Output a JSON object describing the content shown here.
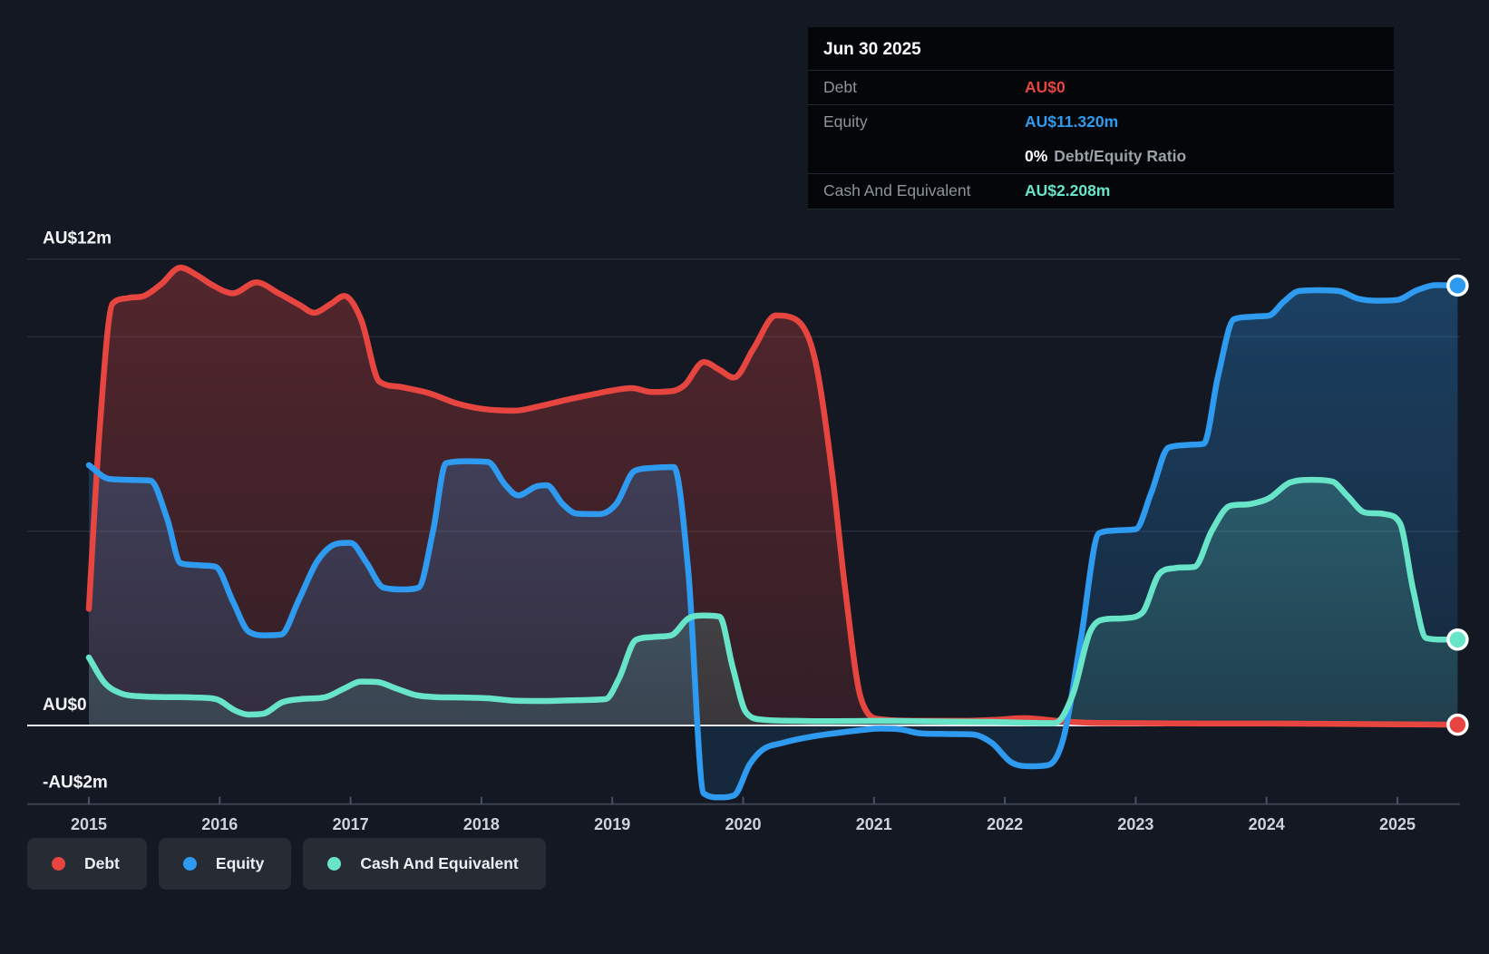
{
  "tooltip": {
    "title": "Jun 30 2025",
    "rows": {
      "debt": {
        "label": "Debt",
        "value": "AU$0"
      },
      "equity": {
        "label": "Equity",
        "value": "AU$11.320m"
      },
      "ratio": {
        "percent": "0%",
        "text": "Debt/Equity Ratio"
      },
      "cash": {
        "label": "Cash And Equivalent",
        "value": "AU$2.208m"
      }
    }
  },
  "legend": {
    "items": [
      {
        "label": "Debt",
        "color": "#e74640"
      },
      {
        "label": "Equity",
        "color": "#2e9bf0"
      },
      {
        "label": "Cash And Equivalent",
        "color": "#68e5c8"
      }
    ]
  },
  "colors": {
    "background": "#131823",
    "tooltip_background": "#040609",
    "gridline": "#262c38",
    "zero_line": "#e4e7eb",
    "axis_line": "#3a414e",
    "tick": "#4a5260",
    "y_label": "#f0f2f5",
    "x_label": "#ced3da",
    "debt": "#e74640",
    "equity": "#2e9bf0",
    "cash": "#68e5c8"
  },
  "chart_data": {
    "type": "area",
    "title": "Debt to Equity history",
    "unit": "AU$ millions",
    "ylim": [
      -2,
      12
    ],
    "grid_values": [
      12,
      10,
      5
    ],
    "zero_value": 0,
    "bottom_value": -2,
    "legend_position": "bottom-left",
    "y_axis": {
      "labels": [
        {
          "text": "AU$12m",
          "value": 12
        },
        {
          "text": "AU$0",
          "value": 0
        },
        {
          "text": "-AU$2m",
          "value": -2
        }
      ]
    },
    "x_axis": {
      "ticks": [
        2015,
        2016,
        2017,
        2018,
        2019,
        2020,
        2021,
        2022,
        2023,
        2024,
        2025
      ]
    },
    "series": [
      {
        "name": "Debt",
        "color": "#e74640",
        "points": [
          [
            2015.0,
            3.0
          ],
          [
            2015.08,
            7.5
          ],
          [
            2015.18,
            10.85
          ],
          [
            2015.3,
            11.0
          ],
          [
            2015.42,
            11.05
          ],
          [
            2015.55,
            11.35
          ],
          [
            2015.7,
            11.78
          ],
          [
            2015.82,
            11.6
          ],
          [
            2015.95,
            11.32
          ],
          [
            2016.1,
            11.12
          ],
          [
            2016.28,
            11.4
          ],
          [
            2016.45,
            11.12
          ],
          [
            2016.62,
            10.8
          ],
          [
            2016.72,
            10.62
          ],
          [
            2016.85,
            10.85
          ],
          [
            2016.95,
            11.05
          ],
          [
            2017.08,
            10.45
          ],
          [
            2017.22,
            8.85
          ],
          [
            2017.4,
            8.7
          ],
          [
            2017.6,
            8.55
          ],
          [
            2017.8,
            8.3
          ],
          [
            2018.0,
            8.15
          ],
          [
            2018.25,
            8.1
          ],
          [
            2018.45,
            8.22
          ],
          [
            2018.65,
            8.38
          ],
          [
            2018.85,
            8.52
          ],
          [
            2019.0,
            8.62
          ],
          [
            2019.15,
            8.68
          ],
          [
            2019.3,
            8.58
          ],
          [
            2019.45,
            8.6
          ],
          [
            2019.55,
            8.75
          ],
          [
            2019.7,
            9.35
          ],
          [
            2019.82,
            9.15
          ],
          [
            2019.93,
            8.95
          ],
          [
            2020.08,
            9.7
          ],
          [
            2020.25,
            10.55
          ],
          [
            2020.4,
            10.45
          ],
          [
            2020.55,
            9.4
          ],
          [
            2020.68,
            6.5
          ],
          [
            2020.78,
            3.5
          ],
          [
            2020.9,
            0.7
          ],
          [
            2021.05,
            0.16
          ],
          [
            2021.35,
            0.12
          ],
          [
            2021.7,
            0.12
          ],
          [
            2021.95,
            0.15
          ],
          [
            2022.15,
            0.19
          ],
          [
            2022.4,
            0.12
          ],
          [
            2022.65,
            0.07
          ],
          [
            2023.0,
            0.06
          ],
          [
            2023.5,
            0.05
          ],
          [
            2024.0,
            0.05
          ],
          [
            2024.5,
            0.04
          ],
          [
            2025.0,
            0.03
          ],
          [
            2025.46,
            0.02
          ]
        ]
      },
      {
        "name": "Equity",
        "color": "#2e9bf0",
        "points": [
          [
            2015.0,
            6.7
          ],
          [
            2015.15,
            6.35
          ],
          [
            2015.3,
            6.32
          ],
          [
            2015.47,
            6.3
          ],
          [
            2015.6,
            5.3
          ],
          [
            2015.7,
            4.18
          ],
          [
            2015.85,
            4.12
          ],
          [
            2015.97,
            4.08
          ],
          [
            2016.1,
            3.2
          ],
          [
            2016.22,
            2.42
          ],
          [
            2016.35,
            2.32
          ],
          [
            2016.47,
            2.34
          ],
          [
            2016.6,
            3.2
          ],
          [
            2016.75,
            4.25
          ],
          [
            2016.9,
            4.68
          ],
          [
            2017.0,
            4.7
          ],
          [
            2017.12,
            4.2
          ],
          [
            2017.25,
            3.55
          ],
          [
            2017.4,
            3.5
          ],
          [
            2017.52,
            3.55
          ],
          [
            2017.63,
            5.0
          ],
          [
            2017.73,
            6.75
          ],
          [
            2017.9,
            6.8
          ],
          [
            2018.05,
            6.78
          ],
          [
            2018.18,
            6.2
          ],
          [
            2018.28,
            5.92
          ],
          [
            2018.42,
            6.15
          ],
          [
            2018.5,
            6.18
          ],
          [
            2018.62,
            5.7
          ],
          [
            2018.73,
            5.45
          ],
          [
            2018.9,
            5.44
          ],
          [
            2019.03,
            5.7
          ],
          [
            2019.17,
            6.55
          ],
          [
            2019.32,
            6.63
          ],
          [
            2019.47,
            6.65
          ],
          [
            2019.58,
            4.0
          ],
          [
            2019.7,
            -1.75
          ],
          [
            2019.82,
            -1.85
          ],
          [
            2019.93,
            -1.8
          ],
          [
            2020.05,
            -1.0
          ],
          [
            2020.15,
            -0.62
          ],
          [
            2020.3,
            -0.45
          ],
          [
            2020.5,
            -0.3
          ],
          [
            2020.7,
            -0.2
          ],
          [
            2020.9,
            -0.12
          ],
          [
            2021.05,
            -0.08
          ],
          [
            2021.2,
            -0.1
          ],
          [
            2021.35,
            -0.2
          ],
          [
            2021.55,
            -0.22
          ],
          [
            2021.75,
            -0.23
          ],
          [
            2021.9,
            -0.45
          ],
          [
            2022.05,
            -0.95
          ],
          [
            2022.2,
            -1.05
          ],
          [
            2022.33,
            -1.02
          ],
          [
            2022.45,
            -0.3
          ],
          [
            2022.58,
            2.2
          ],
          [
            2022.72,
            4.95
          ],
          [
            2022.85,
            5.02
          ],
          [
            2023.0,
            5.05
          ],
          [
            2023.12,
            6.0
          ],
          [
            2023.25,
            7.15
          ],
          [
            2023.4,
            7.22
          ],
          [
            2023.52,
            7.25
          ],
          [
            2023.63,
            9.0
          ],
          [
            2023.75,
            10.45
          ],
          [
            2023.9,
            10.52
          ],
          [
            2024.02,
            10.55
          ],
          [
            2024.13,
            10.9
          ],
          [
            2024.25,
            11.18
          ],
          [
            2024.4,
            11.2
          ],
          [
            2024.55,
            11.18
          ],
          [
            2024.7,
            10.98
          ],
          [
            2024.85,
            10.93
          ],
          [
            2025.0,
            10.95
          ],
          [
            2025.15,
            11.2
          ],
          [
            2025.3,
            11.33
          ],
          [
            2025.46,
            11.32
          ]
        ]
      },
      {
        "name": "Cash And Equivalent",
        "color": "#68e5c8",
        "points": [
          [
            2015.0,
            1.75
          ],
          [
            2015.12,
            1.1
          ],
          [
            2015.25,
            0.82
          ],
          [
            2015.4,
            0.75
          ],
          [
            2015.6,
            0.73
          ],
          [
            2015.8,
            0.72
          ],
          [
            2015.97,
            0.68
          ],
          [
            2016.12,
            0.38
          ],
          [
            2016.22,
            0.28
          ],
          [
            2016.33,
            0.3
          ],
          [
            2016.48,
            0.6
          ],
          [
            2016.62,
            0.68
          ],
          [
            2016.8,
            0.72
          ],
          [
            2016.95,
            0.95
          ],
          [
            2017.08,
            1.13
          ],
          [
            2017.2,
            1.12
          ],
          [
            2017.35,
            0.95
          ],
          [
            2017.5,
            0.78
          ],
          [
            2017.65,
            0.73
          ],
          [
            2017.85,
            0.72
          ],
          [
            2018.05,
            0.7
          ],
          [
            2018.25,
            0.64
          ],
          [
            2018.5,
            0.63
          ],
          [
            2018.72,
            0.65
          ],
          [
            2018.95,
            0.68
          ],
          [
            2019.05,
            1.2
          ],
          [
            2019.18,
            2.2
          ],
          [
            2019.32,
            2.28
          ],
          [
            2019.45,
            2.32
          ],
          [
            2019.58,
            2.75
          ],
          [
            2019.7,
            2.83
          ],
          [
            2019.82,
            2.8
          ],
          [
            2019.92,
            1.5
          ],
          [
            2020.02,
            0.35
          ],
          [
            2020.15,
            0.15
          ],
          [
            2020.4,
            0.12
          ],
          [
            2020.7,
            0.11
          ],
          [
            2021.0,
            0.12
          ],
          [
            2021.3,
            0.11
          ],
          [
            2021.6,
            0.1
          ],
          [
            2021.9,
            0.09
          ],
          [
            2022.15,
            0.07
          ],
          [
            2022.38,
            0.06
          ],
          [
            2022.52,
            0.8
          ],
          [
            2022.65,
            2.4
          ],
          [
            2022.78,
            2.74
          ],
          [
            2022.92,
            2.76
          ],
          [
            2023.05,
            2.9
          ],
          [
            2023.18,
            3.9
          ],
          [
            2023.3,
            4.05
          ],
          [
            2023.45,
            4.08
          ],
          [
            2023.58,
            5.0
          ],
          [
            2023.72,
            5.65
          ],
          [
            2023.88,
            5.7
          ],
          [
            2024.02,
            5.85
          ],
          [
            2024.18,
            6.25
          ],
          [
            2024.35,
            6.32
          ],
          [
            2024.5,
            6.28
          ],
          [
            2024.62,
            5.9
          ],
          [
            2024.75,
            5.48
          ],
          [
            2024.9,
            5.44
          ],
          [
            2025.02,
            5.2
          ],
          [
            2025.12,
            3.5
          ],
          [
            2025.22,
            2.25
          ],
          [
            2025.35,
            2.21
          ],
          [
            2025.46,
            2.21
          ]
        ]
      }
    ],
    "end_markers": [
      {
        "series": "Equity",
        "value_label": "AU$11.320m"
      },
      {
        "series": "Cash And Equivalent",
        "value_label": "AU$2.208m"
      },
      {
        "series": "Debt",
        "value_label": "AU$0"
      }
    ]
  }
}
